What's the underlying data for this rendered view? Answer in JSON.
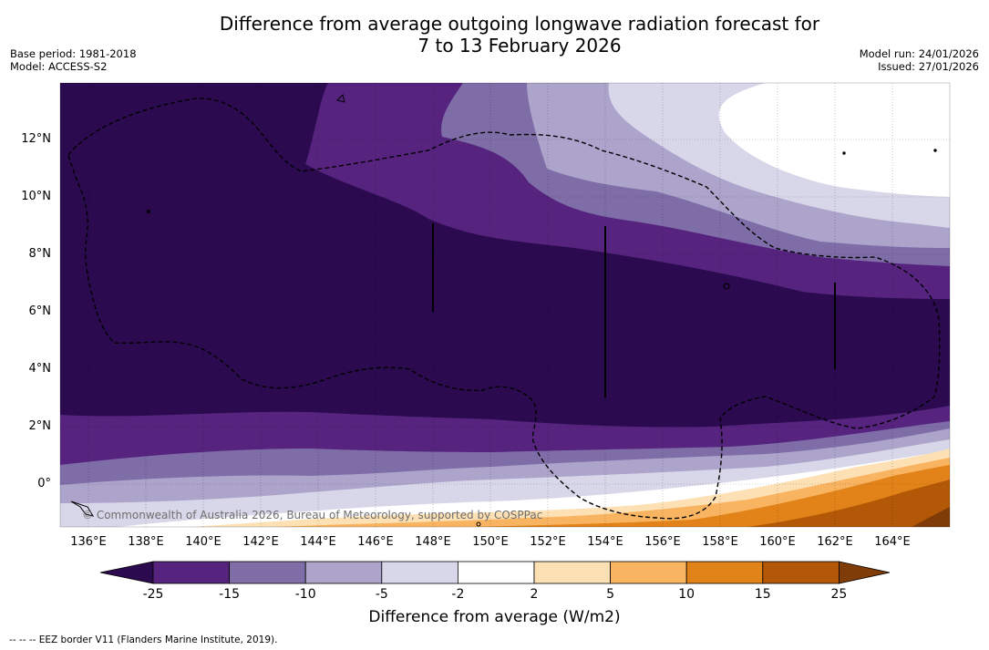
{
  "header": {
    "title_line1": "Difference from average outgoing longwave radiation forecast for",
    "title_line2": "7 to 13 February 2026",
    "base_period": "Base period: 1981-2018",
    "model": "Model: ACCESS-S2",
    "model_run": "Model run: 24/01/2026",
    "issued": "Issued: 27/01/2026"
  },
  "map": {
    "lat_labels": [
      "12°N",
      "10°N",
      "8°N",
      "6°N",
      "4°N",
      "2°N",
      "0°"
    ],
    "lon_labels": [
      "136°E",
      "138°E",
      "140°E",
      "142°E",
      "144°E",
      "146°E",
      "148°E",
      "150°E",
      "152°E",
      "154°E",
      "156°E",
      "158°E",
      "160°E",
      "162°E",
      "164°E"
    ],
    "copyright": "© Commonwealth of Australia 2026, Bureau of Meteorology, supported by COSPPac"
  },
  "colorbar": {
    "title": "Difference from average (W/m2)",
    "ticks": [
      "-25",
      "-15",
      "-10",
      "-5",
      "-2",
      "2",
      "5",
      "10",
      "15",
      "25"
    ],
    "colors": [
      "#2b0a4f",
      "#56247f",
      "#7e6da7",
      "#aca4cb",
      "#d8d7e9",
      "#ffffff",
      "#fde0b4",
      "#f9b461",
      "#e18318",
      "#b35806",
      "#7f3b08"
    ]
  },
  "footer": {
    "eez_legend": "--  --  -- EEZ border V11 (Flanders Marine Institute, 2019)."
  }
}
